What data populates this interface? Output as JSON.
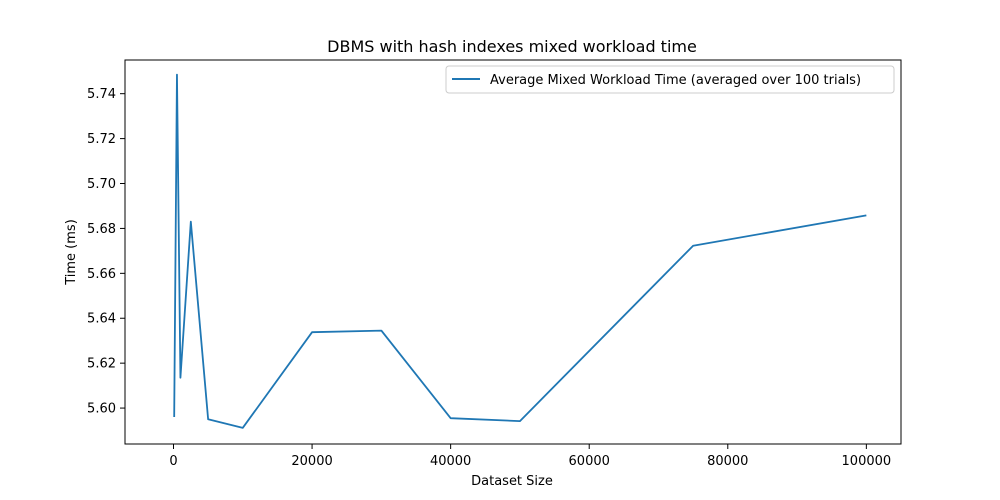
{
  "chart_data": {
    "type": "line",
    "title": "DBMS with hash indexes mixed workload time",
    "xlabel": "Dataset Size",
    "ylabel": "Time (ms)",
    "xlim": [
      -7000,
      105000
    ],
    "ylim": [
      5.584,
      5.755
    ],
    "xticks": [
      0,
      20000,
      40000,
      60000,
      80000,
      100000
    ],
    "yticks": [
      5.6,
      5.62,
      5.64,
      5.66,
      5.68,
      5.7,
      5.72,
      5.74
    ],
    "grid": false,
    "legend_position": "top-right",
    "series": [
      {
        "name": "Average Mixed Workload Time (averaged over 100 trials)",
        "color": "#1f77b4",
        "x": [
          100,
          500,
          1000,
          2500,
          5000,
          10000,
          20000,
          30000,
          40000,
          50000,
          75000,
          100000
        ],
        "y": [
          5.596,
          5.7485,
          5.6135,
          5.683,
          5.595,
          5.5912,
          5.6338,
          5.6345,
          5.5955,
          5.5942,
          5.6723,
          5.6858
        ]
      }
    ]
  }
}
